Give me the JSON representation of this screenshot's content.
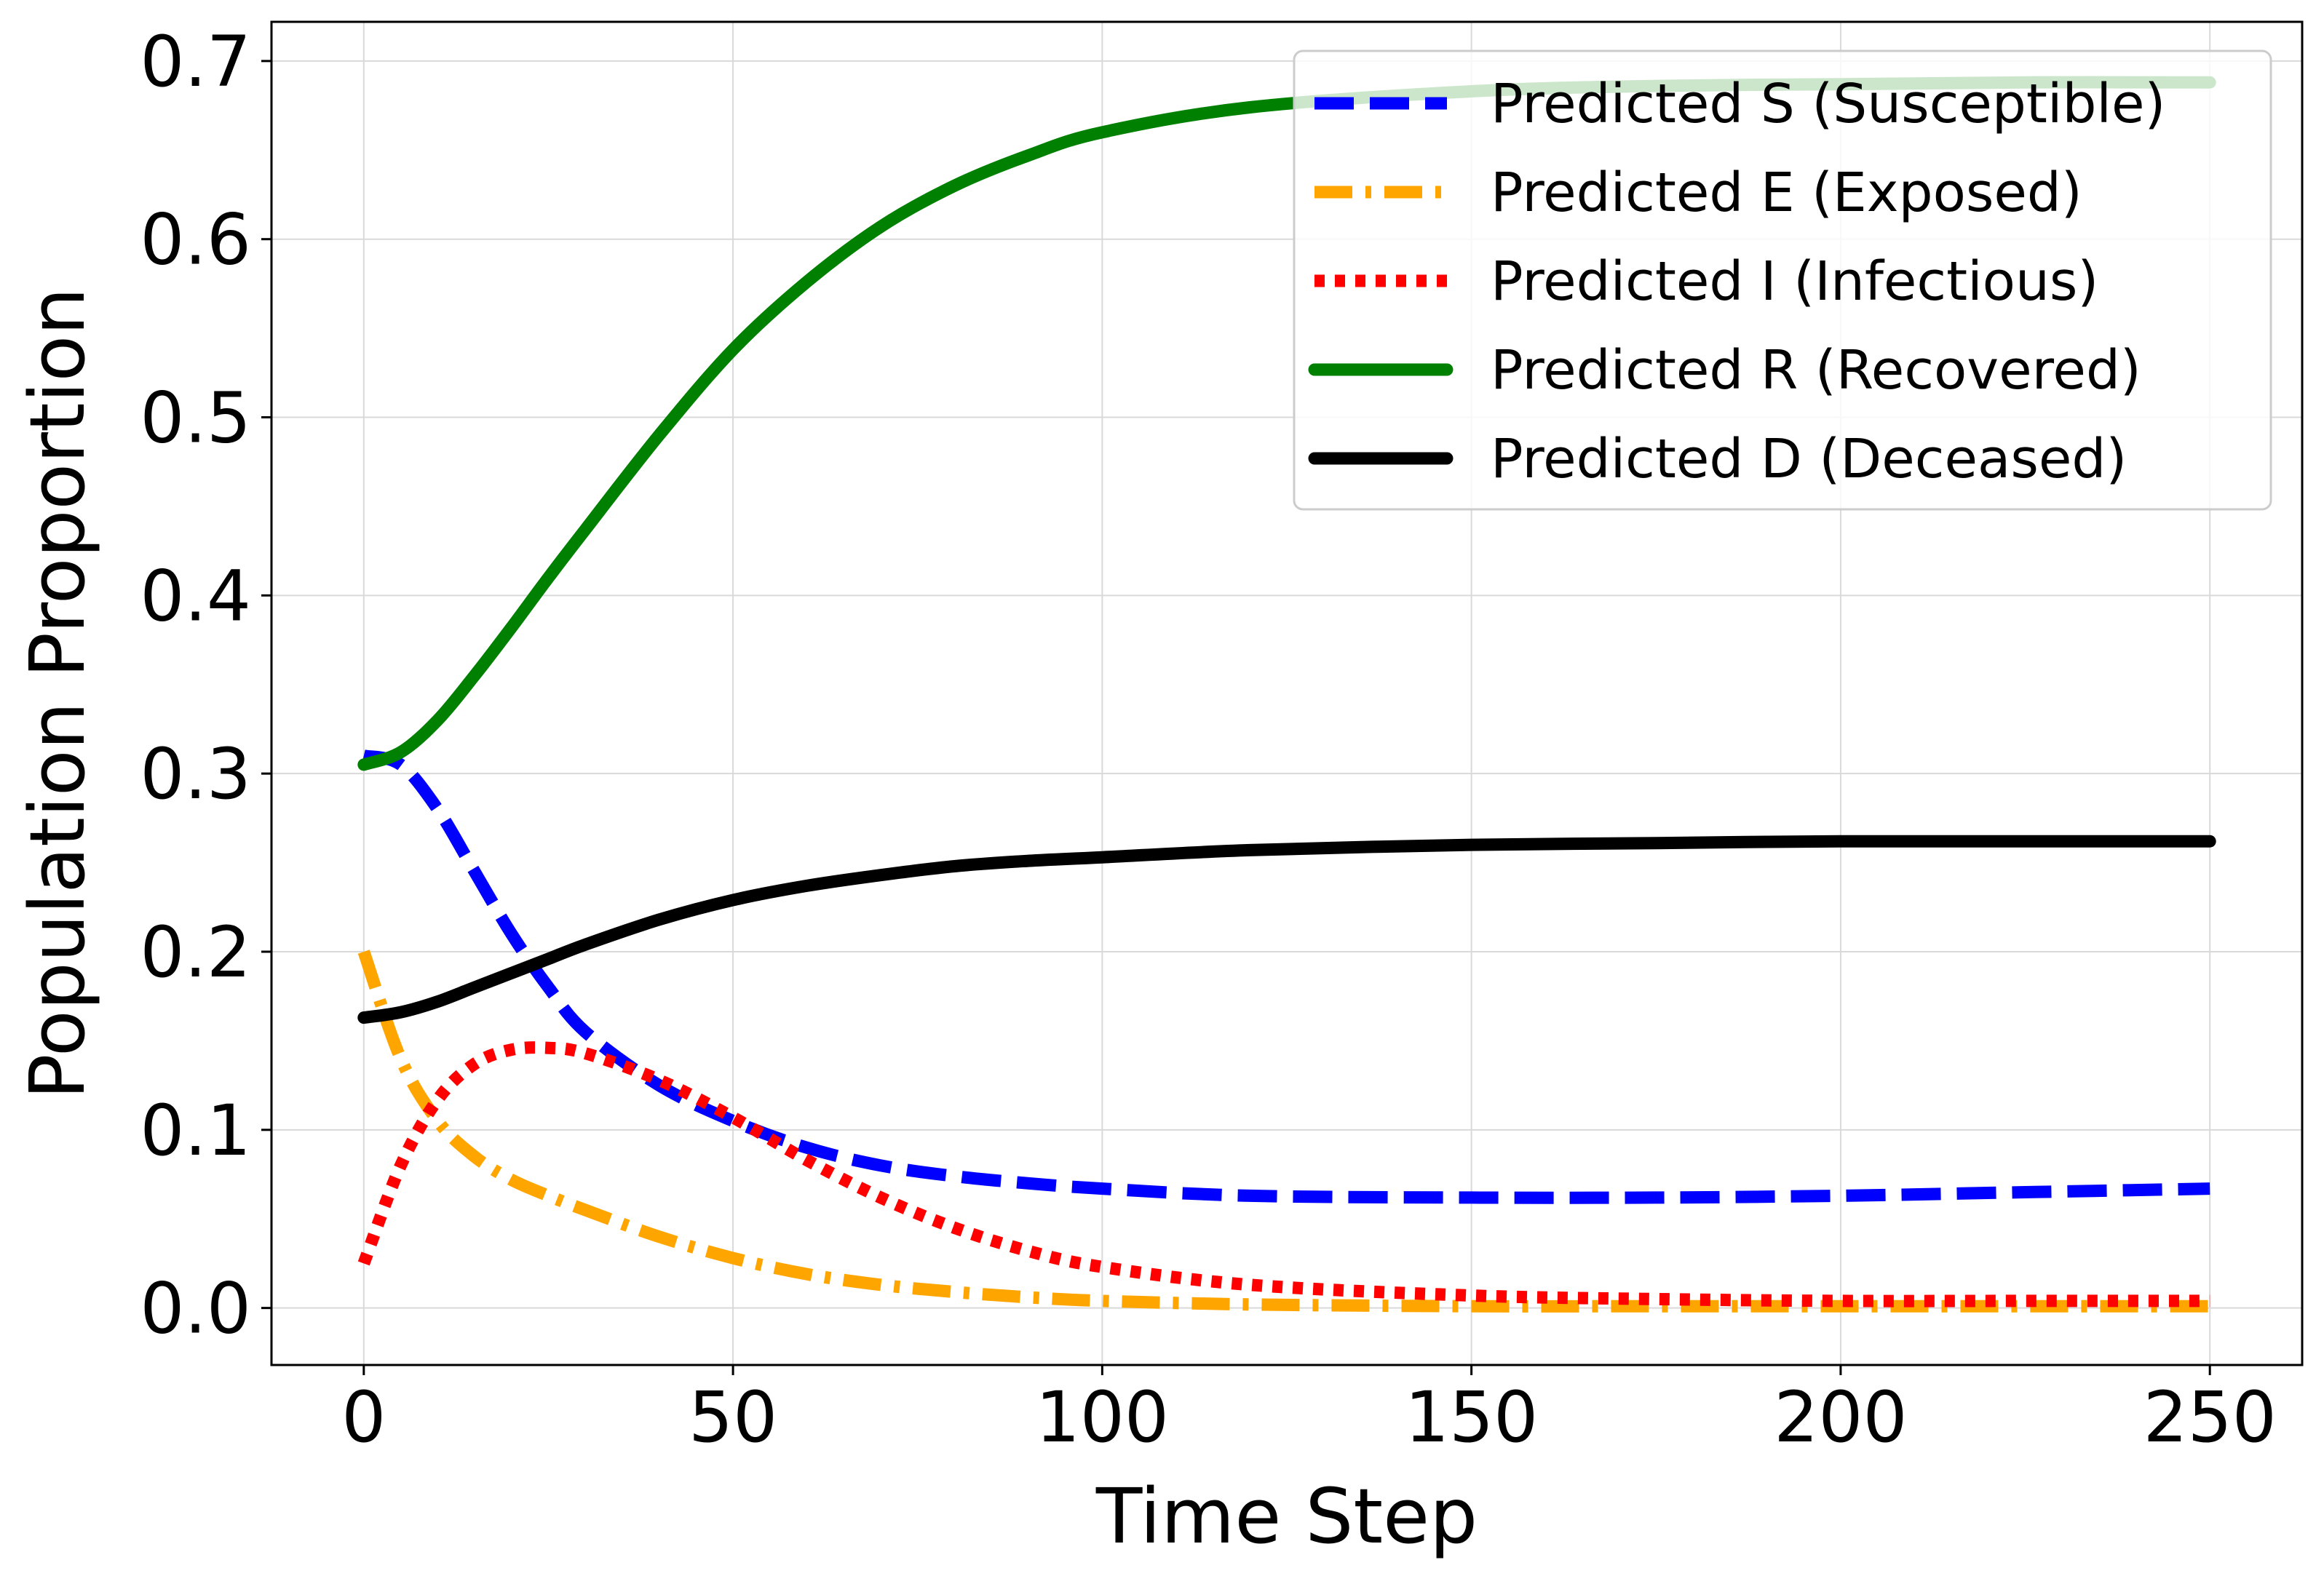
{
  "chart_data": {
    "type": "line",
    "title": "",
    "xlabel": "Time Step",
    "ylabel": "Population Proportion",
    "xlim": [
      -12.5,
      262.5
    ],
    "ylim": [
      -0.032,
      0.722
    ],
    "xticks": [
      0,
      50,
      100,
      150,
      200,
      250
    ],
    "yticks": [
      0.0,
      0.1,
      0.2,
      0.3,
      0.4,
      0.5,
      0.6,
      0.7
    ],
    "xtick_labels": [
      "0",
      "50",
      "100",
      "150",
      "200",
      "250"
    ],
    "ytick_labels": [
      "0.0",
      "0.1",
      "0.2",
      "0.3",
      "0.4",
      "0.5",
      "0.6",
      "0.7"
    ],
    "grid": true,
    "legend_position": "top-right",
    "x": [
      0,
      5,
      10,
      15,
      20,
      25,
      30,
      40,
      50,
      60,
      70,
      80,
      90,
      100,
      120,
      150,
      175,
      200,
      225,
      250
    ],
    "series": [
      {
        "name": "Predicted S (Susceptible)",
        "color": "#0000ff",
        "style": "dashed",
        "values": [
          0.31,
          0.305,
          0.28,
          0.245,
          0.21,
          0.18,
          0.155,
          0.125,
          0.105,
          0.09,
          0.08,
          0.074,
          0.07,
          0.067,
          0.063,
          0.062,
          0.062,
          0.063,
          0.065,
          0.067
        ]
      },
      {
        "name": "Predicted E (Exposed)",
        "color": "#ffa500",
        "style": "dashdot",
        "values": [
          0.2,
          0.14,
          0.105,
          0.085,
          0.072,
          0.063,
          0.055,
          0.04,
          0.028,
          0.019,
          0.013,
          0.009,
          0.006,
          0.004,
          0.002,
          0.001,
          0.001,
          0.001,
          0.001,
          0.001
        ]
      },
      {
        "name": "Predicted I (Infectious)",
        "color": "#ff0000",
        "style": "dotted",
        "values": [
          0.025,
          0.08,
          0.117,
          0.137,
          0.145,
          0.146,
          0.143,
          0.128,
          0.107,
          0.083,
          0.062,
          0.045,
          0.032,
          0.023,
          0.013,
          0.007,
          0.005,
          0.004,
          0.004,
          0.004
        ]
      },
      {
        "name": "Predicted R (Recovered)",
        "color": "#008000",
        "style": "solid",
        "values": [
          0.305,
          0.312,
          0.33,
          0.355,
          0.382,
          0.41,
          0.437,
          0.49,
          0.538,
          0.576,
          0.607,
          0.63,
          0.647,
          0.66,
          0.674,
          0.683,
          0.686,
          0.687,
          0.688,
          0.688
        ]
      },
      {
        "name": "Predicted D (Deceased)",
        "color": "#000000",
        "style": "solid",
        "values": [
          0.163,
          0.166,
          0.172,
          0.18,
          0.188,
          0.196,
          0.204,
          0.218,
          0.229,
          0.237,
          0.243,
          0.248,
          0.251,
          0.253,
          0.257,
          0.26,
          0.261,
          0.262,
          0.262,
          0.262
        ]
      }
    ]
  }
}
